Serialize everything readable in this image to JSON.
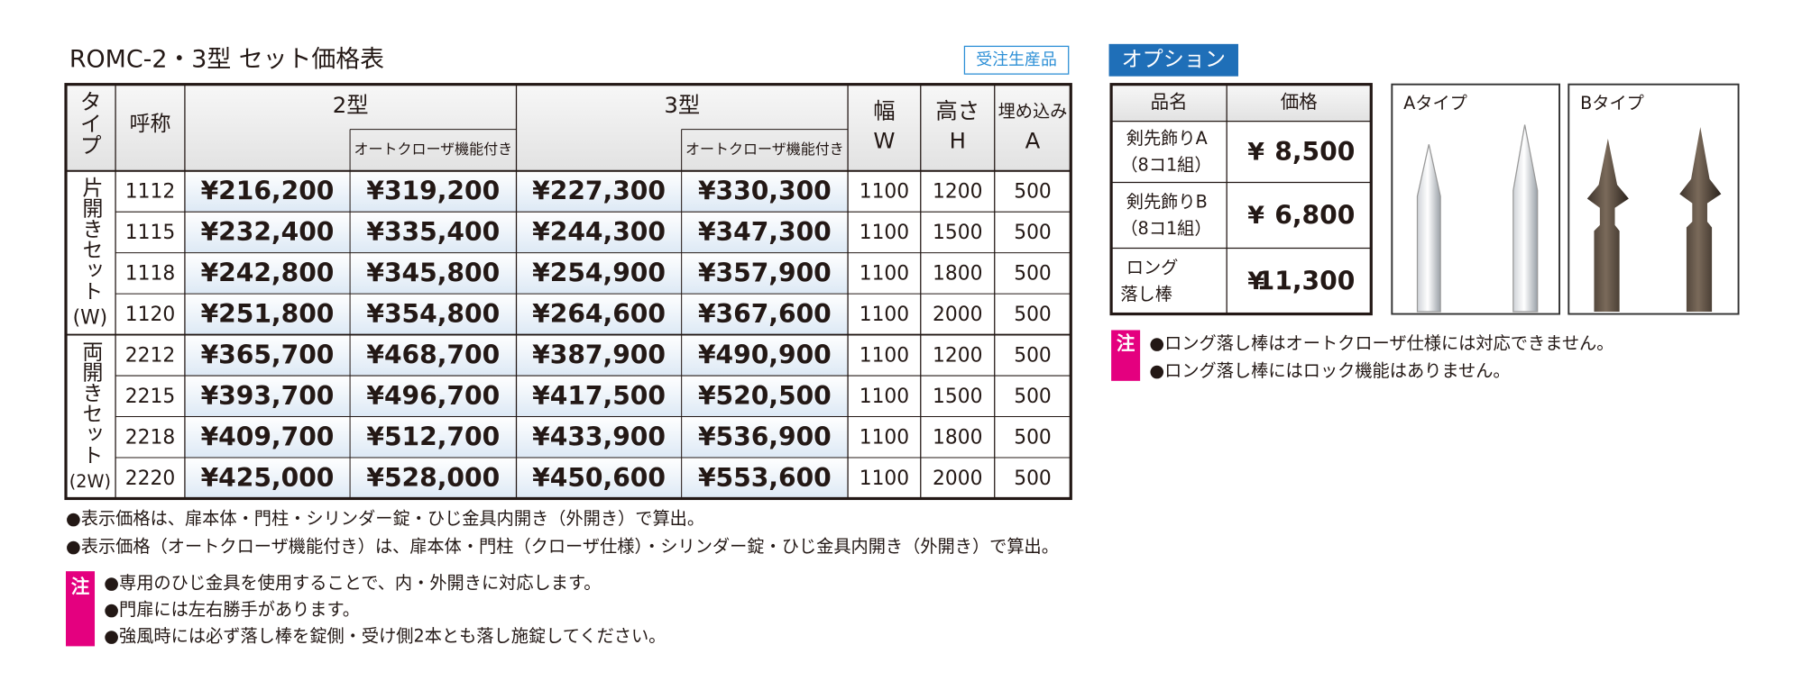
{
  "title": "ROMC-2・3型 セット価格表",
  "badge": "受注生産品",
  "table": {
    "header": {
      "type": "タイプ",
      "name": "呼称",
      "model2": "2型",
      "model3": "3型",
      "auto2": "オートクローザ機能付き",
      "auto3": "オートクローザ機能付き",
      "width": [
        "幅",
        "W"
      ],
      "height": [
        "高さ",
        "H"
      ],
      "embed": [
        "埋め込み",
        "A"
      ]
    },
    "groups": [
      {
        "label": "片開きセット",
        "suffix": "(W)",
        "rows": [
          [
            "1112",
            "¥216,200",
            "¥319,200",
            "¥227,300",
            "¥330,300",
            "1100",
            "1200",
            "500"
          ],
          [
            "1115",
            "¥232,400",
            "¥335,400",
            "¥244,300",
            "¥347,300",
            "1100",
            "1500",
            "500"
          ],
          [
            "1118",
            "¥242,800",
            "¥345,800",
            "¥254,900",
            "¥357,900",
            "1100",
            "1800",
            "500"
          ],
          [
            "1120",
            "¥251,800",
            "¥354,800",
            "¥264,600",
            "¥367,600",
            "1100",
            "2000",
            "500"
          ]
        ]
      },
      {
        "label": "両開きセット",
        "suffix": "(2W)",
        "rows": [
          [
            "2212",
            "¥365,700",
            "¥468,700",
            "¥387,900",
            "¥490,900",
            "1100",
            "1200",
            "500"
          ],
          [
            "2215",
            "¥393,700",
            "¥496,700",
            "¥417,500",
            "¥520,500",
            "1100",
            "1500",
            "500"
          ],
          [
            "2218",
            "¥409,700",
            "¥512,700",
            "¥433,900",
            "¥536,900",
            "1100",
            "1800",
            "500"
          ],
          [
            "2220",
            "¥425,000",
            "¥528,000",
            "¥450,600",
            "¥553,600",
            "1100",
            "2000",
            "500"
          ]
        ]
      }
    ]
  },
  "notes": [
    "●表示価格は、扉本体・門柱・シリンダー錠・ひじ金具内開き（外開き）で算出。",
    "●表示価格（オートクローザ機能付き）は、扉本体・門柱（クローザ仕様）・シリンダー錠・ひじ金具内開き（外開き）で算出。"
  ],
  "caution": {
    "mark": "注",
    "lines": [
      "●専用のひじ金具を使用することで、内・外開きに対応します。",
      "●門扉には左右勝手があります。",
      "●強風時には必ず落し棒を錠側・受け側2本とも落し施錠してください。"
    ]
  },
  "option": {
    "title": "オプション",
    "header": [
      "品名",
      "価格"
    ],
    "rows": [
      {
        "name": [
          "剣先飾りA",
          "（8コ1組）"
        ],
        "currency": "¥",
        "price": "8,500"
      },
      {
        "name": [
          "剣先飾りB",
          "（8コ1組）"
        ],
        "currency": "¥",
        "price": "6,800"
      },
      {
        "name": [
          "ロング",
          "落し棒"
        ],
        "currency": "¥",
        "price": "11,300"
      }
    ],
    "images": [
      "Aタイプ",
      "Bタイプ"
    ],
    "caution": {
      "mark": "注",
      "lines": [
        "●ロング落し棒はオートクローザ仕様には対応できません。",
        "●ロング落し棒にはロック機能はありません。"
      ]
    }
  }
}
